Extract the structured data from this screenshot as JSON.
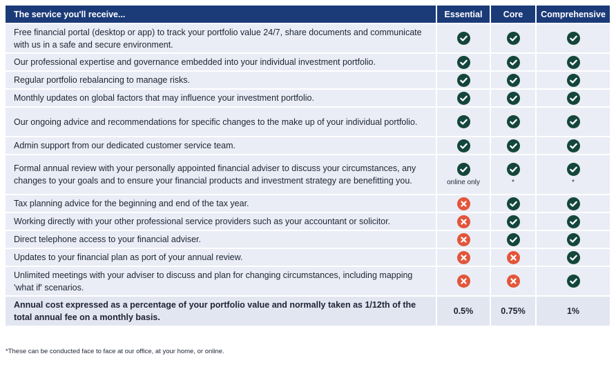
{
  "header": {
    "service": "The service you'll receive...",
    "essential": "Essential",
    "core": "Core",
    "comprehensive": "Comprehensive"
  },
  "colors": {
    "header_bg": "#1b3a78",
    "row_bg": "#eaedf5",
    "check": "#14463b",
    "cross": "#e3553a"
  },
  "icons": {
    "yes": "check-circle-icon",
    "no": "cross-circle-icon"
  },
  "rows": [
    {
      "desc": "Free financial portal (desktop or app) to track your portfolio value 24/7, share documents and communicate with us in a safe and secure environment.",
      "essential": "yes",
      "core": "yes",
      "comprehensive": "yes",
      "h": 43
    },
    {
      "desc": "Our professional expertise and governance embedded into your individual investment portfolio.",
      "essential": "yes",
      "core": "yes",
      "comprehensive": "yes",
      "h": 26
    },
    {
      "desc": "Regular portfolio rebalancing to manage risks.",
      "essential": "yes",
      "core": "yes",
      "comprehensive": "yes",
      "h": 26
    },
    {
      "desc": "Monthly updates on global factors that may influence your investment portfolio.",
      "essential": "yes",
      "core": "yes",
      "comprehensive": "yes",
      "h": 26
    },
    {
      "desc": "Our ongoing advice and recommendations for specific changes to the make up of your individual portfolio.",
      "essential": "yes",
      "core": "yes",
      "comprehensive": "yes",
      "h": 43
    },
    {
      "desc": "Admin support from our dedicated customer service team.",
      "essential": "yes",
      "core": "yes",
      "comprehensive": "yes",
      "h": 26
    },
    {
      "desc": "Formal annual review with your personally appointed financial adviser to discuss your circumstances, any changes to your goals and to ensure your financial products and investment strategy are benefitting you.",
      "essential": "yes",
      "core": "yes",
      "comprehensive": "yes",
      "essential_note": "online only",
      "core_note": "*",
      "comprehensive_note": "*",
      "h": 58
    },
    {
      "desc": "Tax planning advice for the beginning and end of the tax year.",
      "essential": "no",
      "core": "yes",
      "comprehensive": "yes",
      "h": 26
    },
    {
      "desc": "Working directly with your other professional service providers such as your accountant or solicitor.",
      "essential": "no",
      "core": "yes",
      "comprehensive": "yes",
      "h": 26
    },
    {
      "desc": "Direct telephone access to your financial adviser.",
      "essential": "no",
      "core": "yes",
      "comprehensive": "yes",
      "h": 26
    },
    {
      "desc": "Updates to your financial plan as port of your annual review.",
      "essential": "no",
      "core": "no",
      "comprehensive": "yes",
      "h": 26
    },
    {
      "desc": "Unlimited meetings with your adviser to discuss and plan for changing circumstances, including mapping 'what if' scenarios.",
      "essential": "no",
      "core": "no",
      "comprehensive": "yes",
      "h": 43
    }
  ],
  "cost": {
    "desc": "Annual cost expressed as a percentage of your portfolio value and normally taken as 1/12th of the total annual fee on a monthly basis.",
    "essential": "0.5%",
    "core": "0.75%",
    "comprehensive": "1%"
  },
  "footnote": "*These can be conducted face to face at our office, at your home, or online."
}
